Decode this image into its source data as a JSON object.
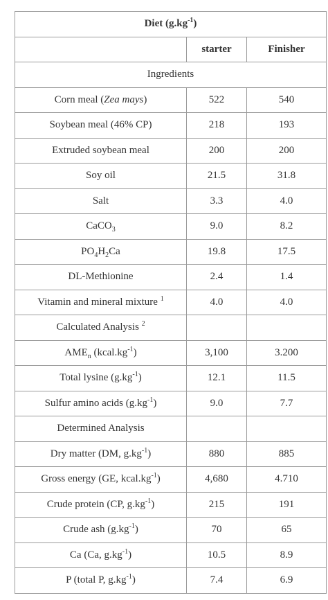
{
  "title": [
    "Diet  (g.kg",
    "-1",
    ")"
  ],
  "header": [
    "starter",
    "Finisher"
  ],
  "rows": [
    {
      "section": "Ingredients"
    },
    {
      "label": [
        "Corn meal (",
        "Zea mays",
        ")"
      ],
      "values": [
        "522",
        "540"
      ]
    },
    {
      "label": "Soybean meal (46% CP)",
      "values": [
        "218",
        "193"
      ]
    },
    {
      "label": "Extruded soybean meal",
      "values": [
        "200",
        "200"
      ]
    },
    {
      "label": "Soy oil",
      "values": [
        "21.5",
        "31.8"
      ]
    },
    {
      "label": "Salt",
      "values": [
        "3.3",
        "4.0"
      ]
    },
    {
      "label": [
        "CaCO",
        "3"
      ],
      "values": [
        "9.0",
        "8.2"
      ]
    },
    {
      "label": [
        "PO",
        "4",
        "H",
        "2",
        "Ca"
      ],
      "values": [
        "19.8",
        "17.5"
      ]
    },
    {
      "label": "DL-Methionine",
      "values": [
        "2.4",
        "1.4"
      ]
    },
    {
      "label": [
        "Vitamin and mineral mixture ",
        "1"
      ],
      "values": [
        "4.0",
        "4.0"
      ]
    },
    {
      "section": [
        "Calculated Analysis ",
        "2"
      ]
    },
    {
      "label": [
        "AME",
        "n",
        " (kcal.kg",
        "-1",
        ")"
      ],
      "values": [
        "3,100",
        "3.200"
      ]
    },
    {
      "label": [
        "Total lysine (g.kg",
        "-1",
        ")"
      ],
      "values": [
        "12.1",
        "11.5"
      ]
    },
    {
      "label": [
        "Sulfur amino acids (g.kg",
        "-1",
        ")"
      ],
      "values": [
        "9.0",
        "7.7"
      ]
    },
    {
      "section": "Determined Analysis"
    },
    {
      "label": [
        "Dry matter (DM, g.kg",
        "-1",
        ")"
      ],
      "values": [
        "880",
        "885"
      ]
    },
    {
      "label": [
        "Gross energy (GE, kcal.kg",
        "-1",
        ")"
      ],
      "values": [
        "4,680",
        "4.710"
      ]
    },
    {
      "label": [
        "Crude protein (CP, g.kg",
        "-1",
        ")"
      ],
      "values": [
        "215",
        "191"
      ]
    },
    {
      "label": [
        "Crude ash (g.kg",
        "-1",
        ")"
      ],
      "values": [
        "70",
        "65"
      ]
    },
    {
      "label": [
        "Ca (Ca, g.kg",
        "-1",
        ")"
      ],
      "values": [
        "10.5",
        "8.9"
      ]
    },
    {
      "label": [
        "P (total P, g.kg",
        "-1",
        ")"
      ],
      "values": [
        "7.4",
        "6.9"
      ]
    }
  ]
}
